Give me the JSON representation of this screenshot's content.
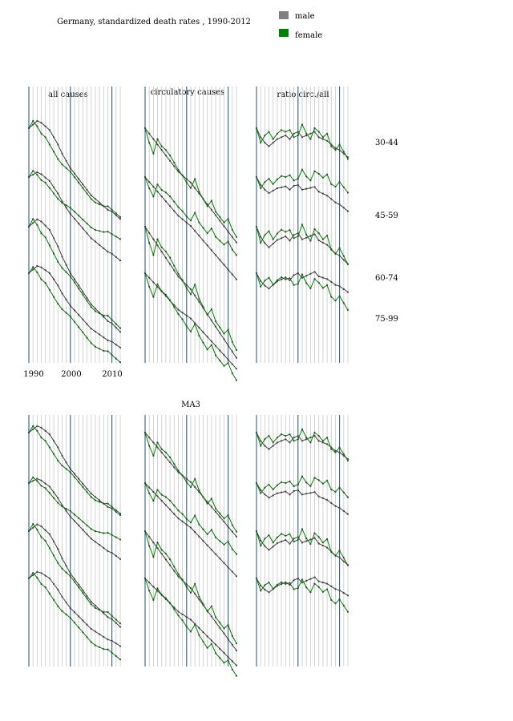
{
  "header": {
    "title": "Germany, standardized death rates , 1990-2012"
  },
  "legend": {
    "placement": "top-right",
    "items": [
      {
        "label": "male",
        "color": "#808080"
      },
      {
        "label": "female",
        "color": "#008000"
      }
    ]
  },
  "colors": {
    "male": "#404040",
    "female": "#008000",
    "decade_line": "#1f4e79",
    "grid_line": "#c8c8c8"
  },
  "row_labels": [
    "30-44",
    "45-59",
    "60-74",
    "75-99"
  ],
  "bottom_block_label": "MA3",
  "x_ticks": [
    "1990",
    "2000",
    "2010"
  ],
  "chart_data": [
    {
      "type": "line",
      "title": "all causes",
      "block": "raw",
      "years": [
        1990,
        1991,
        1992,
        1993,
        1994,
        1995,
        1996,
        1997,
        1998,
        1999,
        2000,
        2001,
        2002,
        2003,
        2004,
        2005,
        2006,
        2007,
        2008,
        2009,
        2010,
        2011,
        2012
      ],
      "grid": true,
      "log_scale": true,
      "series": [
        {
          "name": "male",
          "group": "30-44",
          "values": [
            0,
            0.2,
            0.4,
            0.3,
            0.1,
            -0.1,
            -0.5,
            -0.9,
            -1.4,
            -1.8,
            -2.2,
            -2.5,
            -2.8,
            -3.1,
            -3.4,
            -3.7,
            -3.9,
            -4.1,
            -4.3,
            -4.5,
            -4.6,
            -4.8,
            -5.0
          ]
        },
        {
          "name": "female",
          "group": "30-44",
          "values": [
            0,
            0.4,
            0.1,
            -0.3,
            -0.5,
            -0.9,
            -1.3,
            -1.7,
            -2.0,
            -2.2,
            -2.4,
            -2.7,
            -3.0,
            -3.3,
            -3.6,
            -3.9,
            -4.1,
            -4.2,
            -4.3,
            -4.3,
            -4.5,
            -4.7,
            -4.9
          ]
        }
      ]
    },
    {
      "type": "line",
      "title": "circulatory causes",
      "block": "raw",
      "years": [
        1990,
        1991,
        1992,
        1993,
        1994,
        1995,
        1996,
        1997,
        1998,
        1999,
        2000,
        2001,
        2002,
        2003,
        2004,
        2005,
        2006,
        2007,
        2008,
        2009,
        2010,
        2011,
        2012
      ],
      "grid": true,
      "log_scale": true,
      "series": [
        {
          "name": "male",
          "group": "30-44",
          "values": [
            0,
            -0.3,
            -0.6,
            -0.9,
            -1.2,
            -1.5,
            -1.8,
            -2.1,
            -2.4,
            -2.6,
            -2.8,
            -3.0,
            -3.3,
            -3.6,
            -3.9,
            -4.2,
            -4.5,
            -4.8,
            -5.1,
            -5.4,
            -5.7,
            -6.0,
            -6.3
          ]
        },
        {
          "name": "female",
          "group": "30-44",
          "values": [
            0,
            -0.8,
            -1.4,
            -0.6,
            -1.0,
            -1.2,
            -1.5,
            -1.9,
            -2.3,
            -2.6,
            -3.0,
            -3.3,
            -2.8,
            -3.5,
            -3.9,
            -4.3,
            -4.0,
            -4.6,
            -4.9,
            -5.2,
            -5.0,
            -5.6,
            -6.0
          ]
        }
      ]
    },
    {
      "type": "line",
      "title": "ratio circ./all",
      "block": "raw",
      "years": [
        1990,
        1991,
        1992,
        1993,
        1994,
        1995,
        1996,
        1997,
        1998,
        1999,
        2000,
        2001,
        2002,
        2003,
        2004,
        2005,
        2006,
        2007,
        2008,
        2009,
        2010,
        2011,
        2012
      ],
      "grid": true,
      "log_scale": true,
      "series": [
        {
          "name": "male",
          "group": "30-44",
          "values": [
            0,
            -0.5,
            -0.8,
            -1.0,
            -0.8,
            -0.6,
            -0.5,
            -0.4,
            -0.6,
            -0.3,
            -0.2,
            -0.5,
            -0.4,
            -0.3,
            -0.2,
            -0.5,
            -0.6,
            -0.7,
            -0.9,
            -1.1,
            -1.2,
            -1.4,
            -1.6
          ]
        },
        {
          "name": "female",
          "group": "30-44",
          "values": [
            0,
            -0.8,
            -0.4,
            -0.2,
            -0.6,
            -0.3,
            -0.1,
            -0.2,
            -0.1,
            -0.5,
            -0.4,
            0.2,
            -0.3,
            -0.6,
            0.0,
            -0.2,
            -0.5,
            -0.3,
            -1.0,
            -1.2,
            -0.9,
            -1.3,
            -1.7
          ]
        }
      ]
    }
  ]
}
